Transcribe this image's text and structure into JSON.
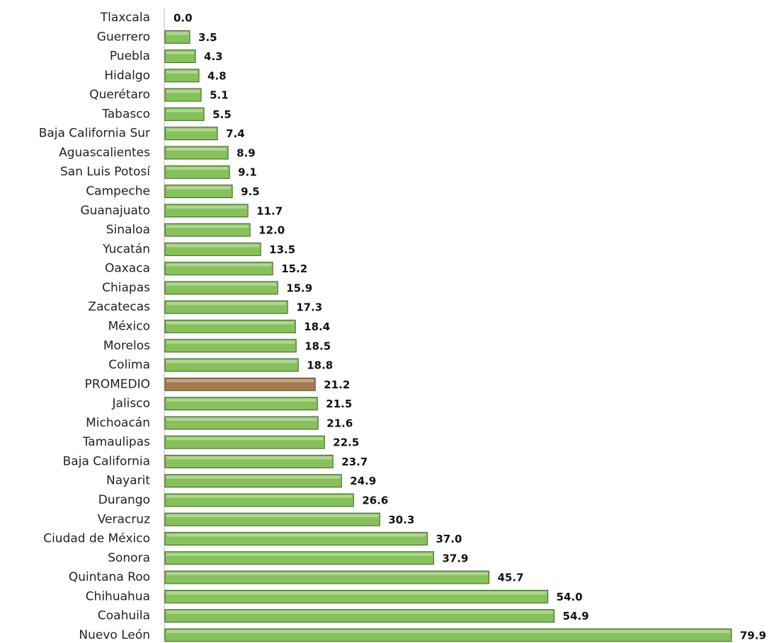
{
  "chart_data": {
    "type": "barh",
    "categories": [
      "Tlaxcala",
      "Guerrero",
      "Puebla",
      "Hidalgo",
      "Querétaro",
      "Tabasco",
      "Baja California Sur",
      "Aguascalientes",
      "San Luis Potosí",
      "Campeche",
      "Guanajuato",
      "Sinaloa",
      "Yucatán",
      "Oaxaca",
      "Chiapas",
      "Zacatecas",
      "México",
      "Morelos",
      "Colima",
      "PROMEDIO",
      "Jalisco",
      "Michoacán",
      "Tamaulipas",
      "Baja California",
      "Nayarit",
      "Durango",
      "Veracruz",
      "Ciudad de México",
      "Sonora",
      "Quintana Roo",
      "Chihuahua",
      "Coahuila",
      "Nuevo León"
    ],
    "values": [
      0,
      3.5,
      4.3,
      4.8,
      5.1,
      5.5,
      7.4,
      8.9,
      9.1,
      9.5,
      11.7,
      12,
      13.5,
      15.2,
      15.9,
      17.3,
      18.4,
      18.5,
      18.8,
      21.2,
      21.5,
      21.6,
      22.5,
      23.7,
      24.9,
      26.6,
      30.3,
      37,
      37.9,
      45.7,
      54,
      54.9,
      79.9
    ],
    "value_labels": [
      "0.0",
      "3.5",
      "4.3",
      "4.8",
      "5.1",
      "5.5",
      "7.4",
      "8.9",
      "9.1",
      "9.5",
      "11.7",
      "12.0",
      "13.5",
      "15.2",
      "15.9",
      "17.3",
      "18.4",
      "18.5",
      "18.8",
      "21.2",
      "21.5",
      "21.6",
      "22.5",
      "23.7",
      "24.9",
      "26.6",
      "30.3",
      "37.0",
      "37.9",
      "45.7",
      "54.0",
      "54.9",
      "79.9"
    ],
    "colors": [
      "#86c15a",
      "#86c15a",
      "#86c15a",
      "#86c15a",
      "#86c15a",
      "#86c15a",
      "#86c15a",
      "#86c15a",
      "#86c15a",
      "#86c15a",
      "#86c15a",
      "#86c15a",
      "#86c15a",
      "#86c15a",
      "#86c15a",
      "#86c15a",
      "#86c15a",
      "#86c15a",
      "#86c15a",
      "#a57a4f",
      "#86c15a",
      "#86c15a",
      "#86c15a",
      "#86c15a",
      "#86c15a",
      "#86c15a",
      "#86c15a",
      "#86c15a",
      "#86c15a",
      "#86c15a",
      "#86c15a",
      "#86c15a",
      "#86c15a"
    ]
  }
}
